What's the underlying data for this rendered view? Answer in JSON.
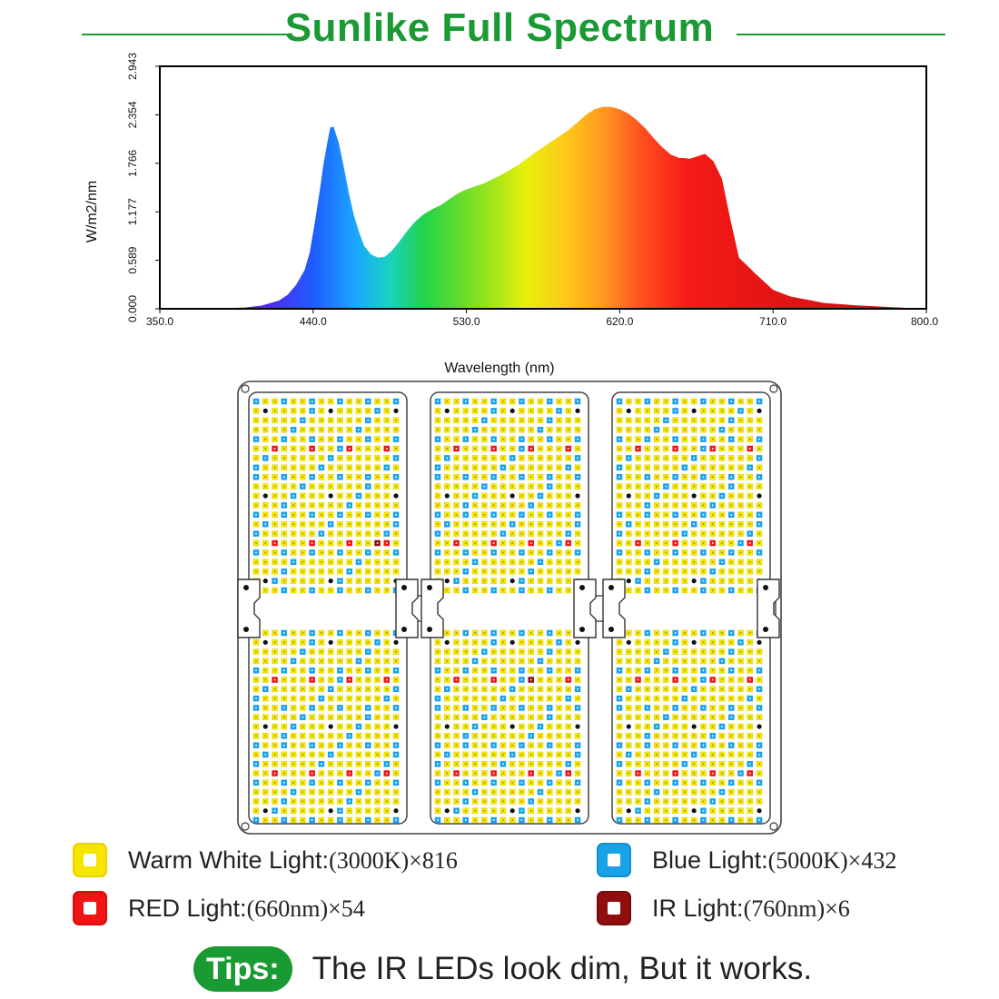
{
  "header": {
    "title": "Sunlike Full Spectrum"
  },
  "chart_data": {
    "type": "area",
    "title": "Sunlike Full Spectrum",
    "xlabel": "Wavelength (nm)",
    "ylabel": "W/m2/nm",
    "xlim": [
      350.0,
      800.0
    ],
    "ylim": [
      0.0,
      2.943
    ],
    "x_ticks": [
      "350.0",
      "440.0",
      "530.0",
      "620.0",
      "710.0",
      "800.0"
    ],
    "y_ticks": [
      "0.000",
      "0.589",
      "1.177",
      "1.766",
      "2.354",
      "2.943"
    ],
    "grid": false,
    "fill": "visible-spectrum gradient",
    "series": [
      {
        "x": [
          350,
          380,
          400,
          410,
          420,
          425,
          430,
          435,
          438,
          441,
          444,
          446,
          448,
          450,
          452,
          455,
          458,
          461,
          464,
          467,
          470,
          474,
          478,
          482,
          486,
          490,
          495,
          500,
          505,
          510,
          515,
          520,
          525,
          530,
          540,
          550,
          560,
          570,
          580,
          590,
          595,
          600,
          605,
          610,
          615,
          620,
          625,
          630,
          635,
          640,
          645,
          650,
          655,
          658,
          661,
          664,
          667,
          670,
          675,
          680,
          685,
          690,
          700,
          710,
          720,
          730,
          740,
          750,
          760,
          770,
          780,
          790,
          800
        ],
        "y": [
          0.0,
          0.003,
          0.015,
          0.04,
          0.1,
          0.17,
          0.29,
          0.47,
          0.68,
          1.05,
          1.45,
          1.75,
          1.98,
          2.2,
          2.21,
          2.02,
          1.72,
          1.4,
          1.13,
          0.93,
          0.76,
          0.66,
          0.62,
          0.63,
          0.7,
          0.8,
          0.94,
          1.06,
          1.15,
          1.21,
          1.26,
          1.33,
          1.4,
          1.45,
          1.52,
          1.62,
          1.74,
          1.89,
          2.03,
          2.17,
          2.26,
          2.35,
          2.42,
          2.45,
          2.45,
          2.42,
          2.37,
          2.29,
          2.19,
          2.07,
          1.96,
          1.87,
          1.83,
          1.83,
          1.82,
          1.84,
          1.86,
          1.88,
          1.79,
          1.58,
          1.08,
          0.62,
          0.42,
          0.23,
          0.15,
          0.11,
          0.07,
          0.055,
          0.04,
          0.03,
          0.02,
          0.01,
          0.0
        ]
      }
    ]
  },
  "legend": [
    {
      "name": "Warm White Light:",
      "spec": "(3000K)×816",
      "color": "#f5e600",
      "border": "#e6d200"
    },
    {
      "name": "Blue Light:",
      "spec": "(5000K)×432",
      "color": "#19a3e6",
      "border": "#0e8fd1"
    },
    {
      "name": "RED Light:",
      "spec": "(660nm)×54",
      "color": "#f01414",
      "border": "#d80b0b"
    },
    {
      "name": "IR Light:",
      "spec": "(760nm)×6",
      "color": "#8f0f0f",
      "border": "#7a0a0a"
    }
  ],
  "tips": {
    "badge": "Tips:",
    "text": "The IR LEDs look dim, But it works."
  },
  "colors": {
    "accent_green": "#1a9a32",
    "led_white": "#f5e600",
    "led_blue": "#19a3e6",
    "led_red": "#f01414",
    "led_ir": "#8f0f0f"
  }
}
